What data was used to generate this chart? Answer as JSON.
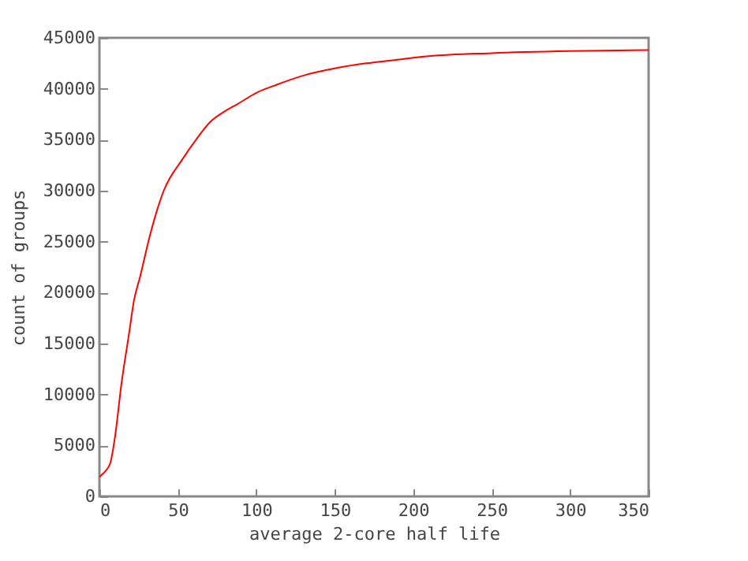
{
  "chart_data": {
    "type": "line",
    "xlabel": "average 2-core half life",
    "ylabel": "count of groups",
    "xlim": [
      0,
      350
    ],
    "ylim": [
      0,
      45000
    ],
    "xticks": [
      0,
      50,
      100,
      150,
      200,
      250,
      300,
      350
    ],
    "yticks": [
      0,
      5000,
      10000,
      15000,
      20000,
      25000,
      30000,
      35000,
      40000,
      45000
    ],
    "grid": false,
    "marker": "none",
    "line_style": "solid",
    "series": [
      {
        "color": "#ff0000",
        "x": [
          0,
          2,
          5,
          7,
          10,
          14,
          19,
          22,
          26,
          32,
          41,
          53,
          62,
          71,
          80,
          88,
          100,
          113,
          130,
          150,
          170,
          187,
          210,
          250,
          300,
          350
        ],
        "values": [
          1900,
          2200,
          2700,
          3300,
          5900,
          11000,
          16100,
          19200,
          21600,
          25500,
          30000,
          33100,
          35100,
          36800,
          37800,
          38500,
          39600,
          40400,
          41300,
          42000,
          42500,
          42800,
          43200,
          43500,
          43700,
          43800
        ]
      }
    ]
  }
}
